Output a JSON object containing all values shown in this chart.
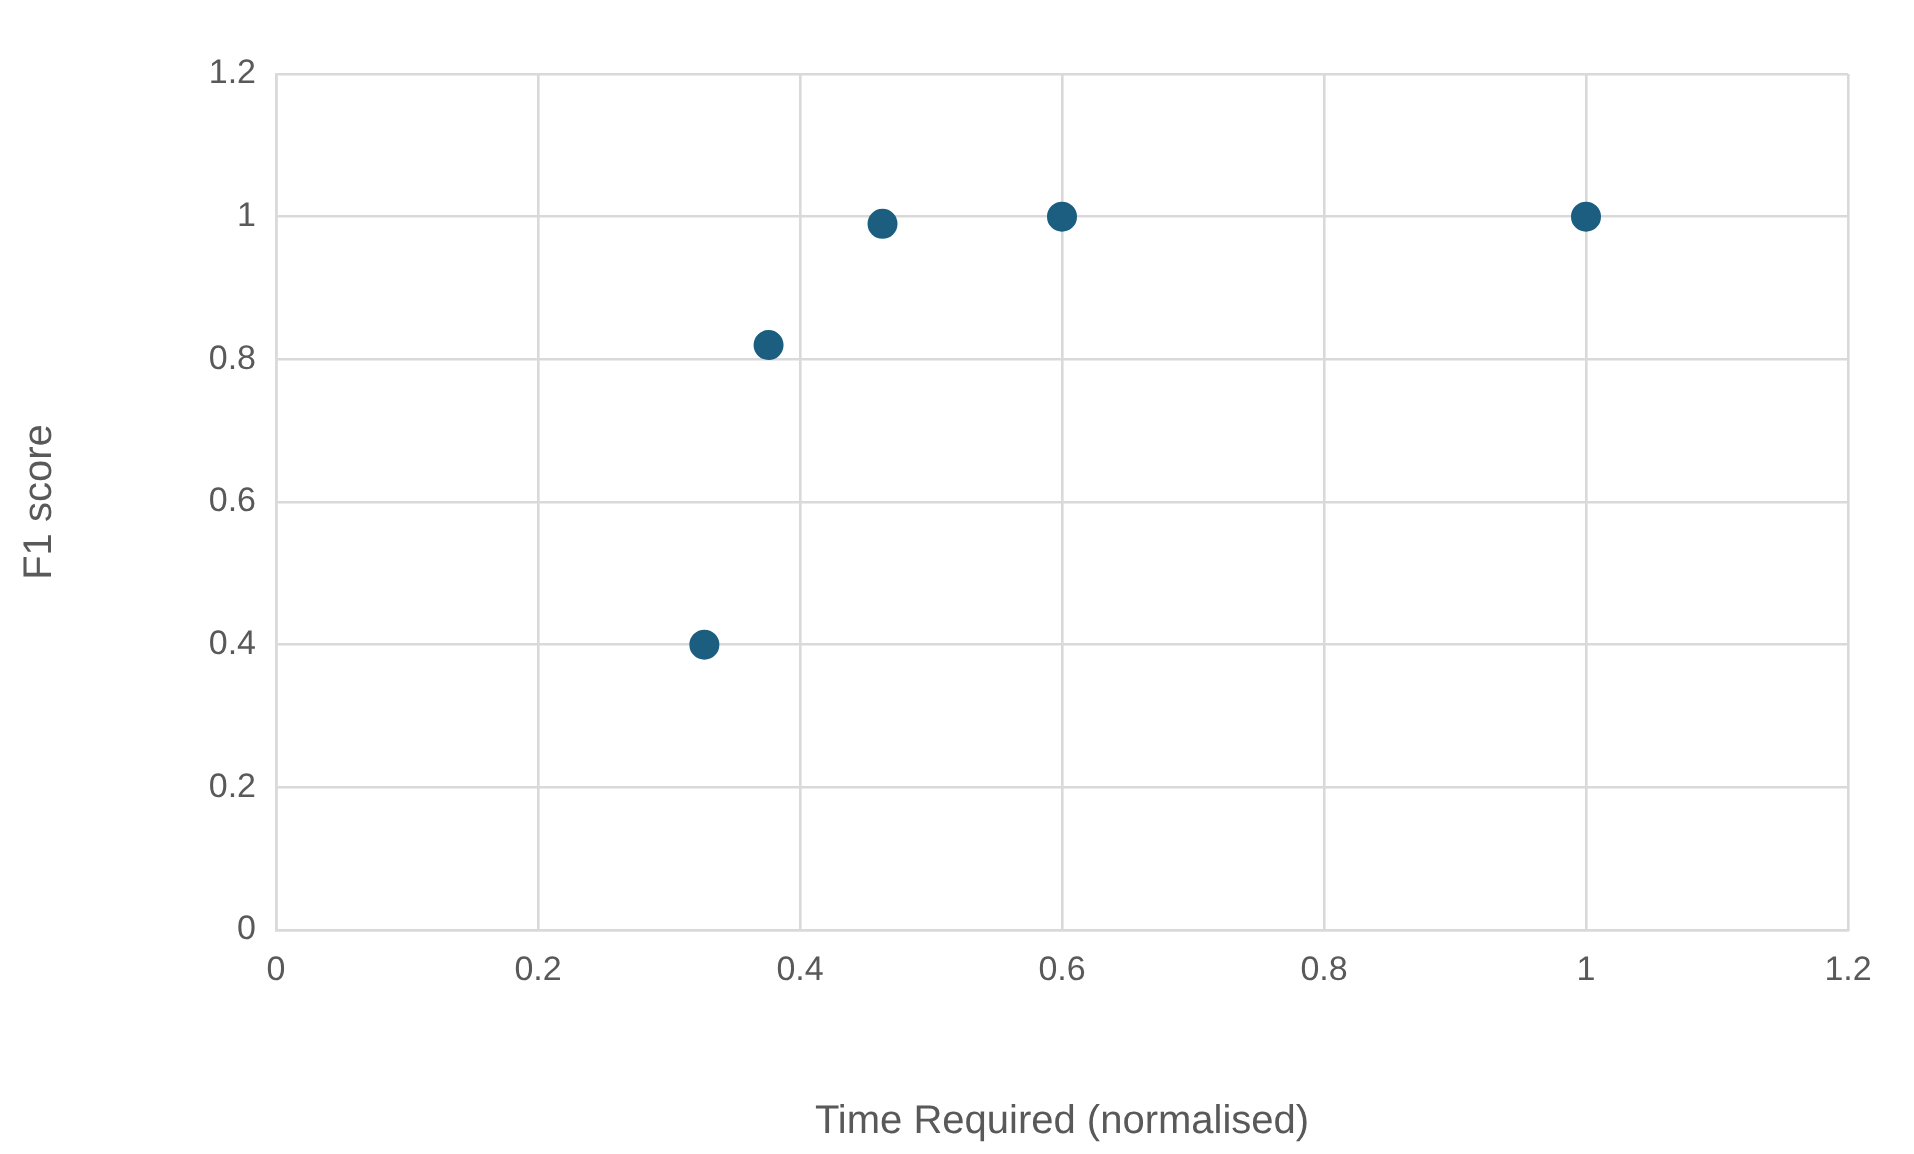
{
  "chart_data": {
    "type": "scatter",
    "xlabel": "Time Required (normalised)",
    "ylabel": "F1 score",
    "x": [
      0.327,
      0.376,
      0.463,
      0.6,
      1.0
    ],
    "series": [
      {
        "color": "#1b5e80",
        "values": [
          0.4,
          0.82,
          0.99,
          1.0,
          1.0
        ]
      }
    ],
    "xlim": [
      0,
      1.2
    ],
    "xticks": [
      0,
      0.2,
      0.4,
      0.6,
      0.8,
      1,
      1.2
    ],
    "ylim": [
      0,
      1.2
    ],
    "yticks": [
      0,
      0.2,
      0.4,
      0.6,
      0.8,
      1,
      1.2
    ],
    "grid": true,
    "marker": "circle",
    "legend": false
  }
}
